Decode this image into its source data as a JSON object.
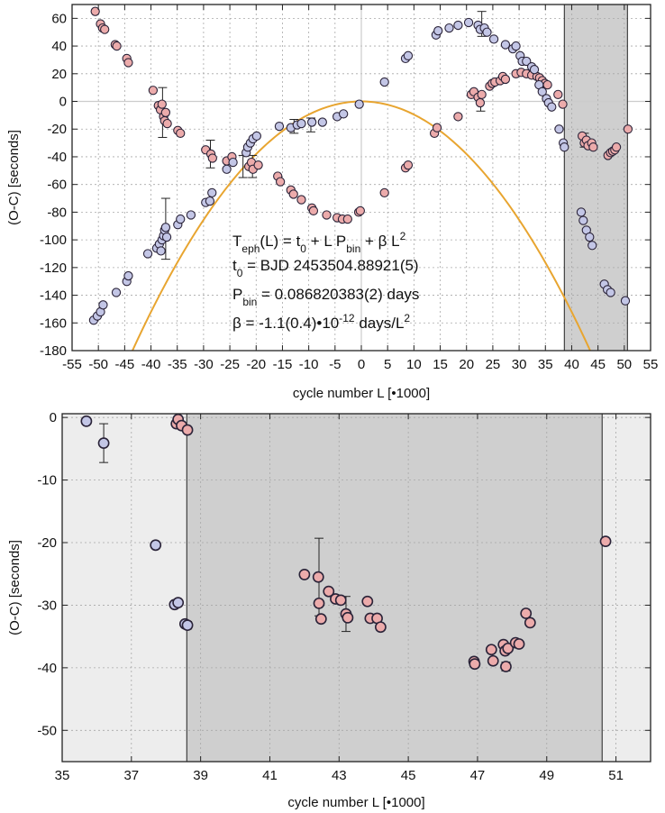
{
  "chart_data": [
    {
      "type": "scatter",
      "xlabel": "cycle number L [•1000]",
      "ylabel": "(O-C) [seconds]",
      "xlim": [
        -55,
        55
      ],
      "ylim": [
        -180,
        70
      ],
      "xticks": [
        -55,
        -50,
        -45,
        -40,
        -35,
        -30,
        -25,
        -20,
        -15,
        -10,
        -5,
        0,
        5,
        10,
        15,
        20,
        25,
        30,
        35,
        40,
        45,
        50,
        55
      ],
      "yticks": [
        -180,
        -160,
        -140,
        -120,
        -100,
        -80,
        -60,
        -40,
        -20,
        0,
        20,
        40,
        60
      ],
      "shaded_region": [
        38.6,
        50.6
      ],
      "reference_lines": {
        "x": 0,
        "y": 0
      },
      "annotation": {
        "line1": {
          "a": "T",
          "a_sub": "eph",
          "b": "(L) = t",
          "b_sub": "0",
          "c": " + L P",
          "c_sub": "bin",
          "d": " + β L",
          "d_sup": "2"
        },
        "line2": {
          "a": "t",
          "a_sub": "0",
          "b": " = BJD 2453504.88921(5)"
        },
        "line3": {
          "a": "P",
          "a_sub": "bin",
          "b": " = 0.086820383(2) days"
        },
        "line4": {
          "a": "β =  -1.1(0.4)•10",
          "a_sup": "-12",
          "b": " days/L",
          "b_sup": "2"
        }
      },
      "series": [
        {
          "color": "#ecabab",
          "values": [
            [
              -50.6,
              65
            ],
            [
              -49.6,
              56
            ],
            [
              -49.2,
              53
            ],
            [
              -48.8,
              52
            ],
            [
              -46.8,
              41
            ],
            [
              -46.5,
              40
            ],
            [
              -44.6,
              31
            ],
            [
              -44.3,
              28
            ],
            [
              -39.6,
              8
            ],
            [
              -38.6,
              -3
            ],
            [
              -38.2,
              -6
            ],
            [
              -37.9,
              -2
            ],
            [
              -37.6,
              -11
            ],
            [
              -37.4,
              -14
            ],
            [
              -37.2,
              -8
            ],
            [
              -36.9,
              -16
            ],
            [
              -34.9,
              -21
            ],
            [
              -34.4,
              -23
            ],
            [
              -29.6,
              -35
            ],
            [
              -28.6,
              -38
            ],
            [
              -28.3,
              -41
            ],
            [
              -25.6,
              -43
            ],
            [
              -24.6,
              -40
            ],
            [
              -21.4,
              -47
            ],
            [
              -20.9,
              -44
            ],
            [
              -20.6,
              -49
            ],
            [
              -19.6,
              -46
            ],
            [
              -15.9,
              -54
            ],
            [
              -15.4,
              -58
            ],
            [
              -13.4,
              -64
            ],
            [
              -12.9,
              -67
            ],
            [
              -11.4,
              -71
            ],
            [
              -9.4,
              -77
            ],
            [
              -9.1,
              -79
            ],
            [
              -6.6,
              -82
            ],
            [
              -4.6,
              -84
            ],
            [
              -3.6,
              -85
            ],
            [
              -2.6,
              -85
            ],
            [
              -0.5,
              -80
            ],
            [
              -0.2,
              -79
            ],
            [
              4.4,
              -66
            ],
            [
              8.4,
              -48
            ],
            [
              8.9,
              -46
            ],
            [
              13.9,
              -23
            ],
            [
              14.4,
              -19
            ],
            [
              18.4,
              -11
            ],
            [
              20.9,
              5
            ],
            [
              21.4,
              7
            ],
            [
              22.2,
              3
            ],
            [
              22.6,
              -1
            ],
            [
              22.9,
              5
            ],
            [
              24.4,
              11
            ],
            [
              24.9,
              13
            ],
            [
              25.4,
              14
            ],
            [
              26.4,
              15
            ],
            [
              26.9,
              18
            ],
            [
              27.4,
              16
            ],
            [
              29.4,
              20
            ],
            [
              30.4,
              21
            ],
            [
              31.4,
              20
            ],
            [
              32.4,
              19
            ],
            [
              33.4,
              18
            ],
            [
              33.9,
              17
            ],
            [
              34.4,
              15
            ],
            [
              34.9,
              13
            ],
            [
              35.4,
              12
            ],
            [
              37.4,
              5
            ],
            [
              38.3,
              -2
            ],
            [
              42.0,
              -25
            ],
            [
              42.4,
              -30
            ],
            [
              42.8,
              -28
            ],
            [
              43.1,
              -32
            ],
            [
              43.8,
              -30
            ],
            [
              44.1,
              -33
            ],
            [
              46.9,
              -39
            ],
            [
              47.4,
              -37
            ],
            [
              47.8,
              -36
            ],
            [
              48.2,
              -35
            ],
            [
              48.5,
              -33
            ],
            [
              50.7,
              -20
            ]
          ]
        },
        {
          "color": "#c3c6e6",
          "values": [
            [
              -50.9,
              -158
            ],
            [
              -50.2,
              -155
            ],
            [
              -49.6,
              -152
            ],
            [
              -49.1,
              -147
            ],
            [
              -46.6,
              -138
            ],
            [
              -44.6,
              -130
            ],
            [
              -44.3,
              -126
            ],
            [
              -40.6,
              -110
            ],
            [
              -38.9,
              -106
            ],
            [
              -38.4,
              -103
            ],
            [
              -38.1,
              -108
            ],
            [
              -37.9,
              -100
            ],
            [
              -37.6,
              -97
            ],
            [
              -37.4,
              -93
            ],
            [
              -37.2,
              -91
            ],
            [
              -37.0,
              -98
            ],
            [
              -34.9,
              -89
            ],
            [
              -34.4,
              -85
            ],
            [
              -32.4,
              -82
            ],
            [
              -29.6,
              -73
            ],
            [
              -28.8,
              -72
            ],
            [
              -28.4,
              -66
            ],
            [
              -25.6,
              -49
            ],
            [
              -24.4,
              -44
            ],
            [
              -21.9,
              -37
            ],
            [
              -21.6,
              -33
            ],
            [
              -21.1,
              -30
            ],
            [
              -20.6,
              -27
            ],
            [
              -19.9,
              -25
            ],
            [
              -15.6,
              -18
            ],
            [
              -13.4,
              -19
            ],
            [
              -12.2,
              -17
            ],
            [
              -11.4,
              -16
            ],
            [
              -9.4,
              -15
            ],
            [
              -7.4,
              -15
            ],
            [
              -4.6,
              -11
            ],
            [
              -3.4,
              -9
            ],
            [
              -0.4,
              -2
            ],
            [
              4.4,
              14
            ],
            [
              8.4,
              31
            ],
            [
              8.9,
              33
            ],
            [
              14.2,
              48
            ],
            [
              14.6,
              51
            ],
            [
              16.7,
              53
            ],
            [
              18.4,
              55
            ],
            [
              20.4,
              57
            ],
            [
              22.2,
              55
            ],
            [
              22.6,
              52
            ],
            [
              23.4,
              53
            ],
            [
              23.9,
              50
            ],
            [
              25.2,
              45
            ],
            [
              27.4,
              41
            ],
            [
              28.8,
              38
            ],
            [
              29.4,
              40
            ],
            [
              30.2,
              33
            ],
            [
              30.6,
              29
            ],
            [
              31.4,
              29
            ],
            [
              32.4,
              25
            ],
            [
              32.9,
              23
            ],
            [
              33.8,
              12
            ],
            [
              34.4,
              7
            ],
            [
              35.2,
              2
            ],
            [
              35.6,
              -1
            ],
            [
              36.2,
              -4
            ],
            [
              37.6,
              -20
            ],
            [
              38.4,
              -30
            ],
            [
              38.6,
              -33
            ],
            [
              41.8,
              -80
            ],
            [
              42.2,
              -86
            ],
            [
              42.8,
              -93
            ],
            [
              43.4,
              -98
            ],
            [
              43.9,
              -104
            ],
            [
              46.2,
              -132
            ],
            [
              46.8,
              -136
            ],
            [
              47.4,
              -138
            ],
            [
              50.2,
              -144
            ]
          ]
        }
      ],
      "errorbars": [
        [
          -37.8,
          -8,
          18
        ],
        [
          -37.2,
          -92,
          22
        ],
        [
          -28.7,
          -38,
          10
        ],
        [
          -22.5,
          -47,
          8
        ],
        [
          -20.7,
          -47,
          8
        ],
        [
          -12.8,
          -18,
          5
        ],
        [
          -9.6,
          -17,
          5
        ],
        [
          22.9,
          56,
          9
        ],
        [
          22.7,
          -1,
          6
        ],
        [
          42.4,
          -28,
          5
        ]
      ],
      "fit_curve": {
        "color": "#e8a530",
        "beta": -1.1,
        "note": "parabola 1000²·β·10⁻¹² days → s"
      }
    },
    {
      "type": "scatter",
      "xlabel": "cycle number L [•1000]",
      "ylabel": "(O-C) [seconds]",
      "xlim": [
        35,
        52
      ],
      "ylim": [
        -55,
        0.6
      ],
      "xticks": [
        35,
        37,
        39,
        41,
        43,
        45,
        47,
        49,
        51
      ],
      "yticks": [
        0,
        -10,
        -20,
        -30,
        -40,
        -50
      ],
      "light_region": [
        35,
        52
      ],
      "shaded_region": [
        38.6,
        50.6
      ],
      "series": [
        {
          "color": "#ecabab",
          "values": [
            [
              38.3,
              -1.0
            ],
            [
              38.35,
              -0.3
            ],
            [
              38.45,
              -1.3
            ],
            [
              38.62,
              -2.0
            ],
            [
              42.0,
              -25.1
            ],
            [
              42.4,
              -25.5
            ],
            [
              42.42,
              -29.7
            ],
            [
              42.48,
              -32.2
            ],
            [
              42.7,
              -27.8
            ],
            [
              42.9,
              -29.0
            ],
            [
              43.05,
              -29.2
            ],
            [
              43.2,
              -31.4
            ],
            [
              43.25,
              -32.0
            ],
            [
              43.82,
              -29.4
            ],
            [
              43.9,
              -32.1
            ],
            [
              44.1,
              -32.1
            ],
            [
              44.2,
              -33.5
            ],
            [
              46.9,
              -39.0
            ],
            [
              46.92,
              -39.4
            ],
            [
              47.4,
              -37.1
            ],
            [
              47.45,
              -38.9
            ],
            [
              47.75,
              -36.3
            ],
            [
              47.8,
              -37.3
            ],
            [
              47.82,
              -39.8
            ],
            [
              47.88,
              -36.9
            ],
            [
              48.1,
              -36.0
            ],
            [
              48.2,
              -36.2
            ],
            [
              48.4,
              -31.3
            ],
            [
              48.52,
              -32.8
            ],
            [
              50.7,
              -19.8
            ]
          ]
        },
        {
          "color": "#c3c6e6",
          "values": [
            [
              35.7,
              -0.6
            ],
            [
              36.2,
              -4.1
            ],
            [
              37.7,
              -20.4
            ],
            [
              38.25,
              -29.9
            ],
            [
              38.35,
              -29.6
            ],
            [
              38.55,
              -33.0
            ],
            [
              38.62,
              -33.2
            ]
          ]
        }
      ],
      "errorbars": [
        [
          36.2,
          -4.1,
          3.1
        ],
        [
          42.42,
          -25.5,
          6.2
        ],
        [
          43.2,
          -31.4,
          2.8
        ],
        [
          47.82,
          -39.8,
          0.7
        ],
        [
          38.62,
          -33.2,
          0.6
        ]
      ]
    }
  ]
}
